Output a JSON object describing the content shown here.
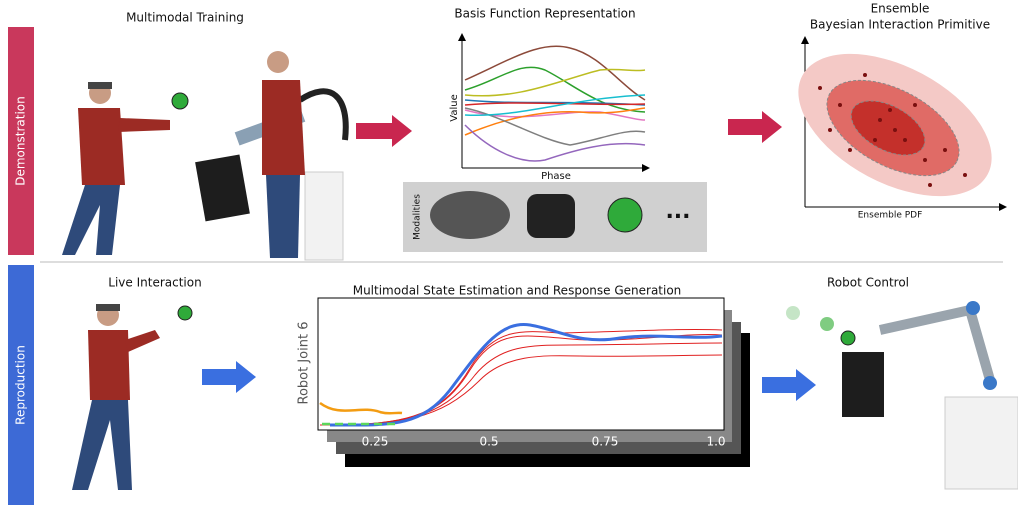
{
  "sections": {
    "demonstration": "Demonstration",
    "reproduction": "Reproduction"
  },
  "training": {
    "title": "Multimodal Training"
  },
  "basis": {
    "title": "Basis Function Representation",
    "y_label": "Value",
    "x_label": "Phase",
    "modalities": "Modalities",
    "ellipsis": "..."
  },
  "ensemble": {
    "title_line1": "Ensemble",
    "title_line2": "Bayesian Interaction Primitive",
    "x_label": "Ensemble PDF"
  },
  "live": {
    "title": "Live Interaction"
  },
  "estimation": {
    "title": "Multimodal State Estimation and Response Generation",
    "y_label": "Robot Joint 6",
    "ticks": [
      "0.25",
      "0.5",
      "0.75",
      "1.0"
    ]
  },
  "control": {
    "title": "Robot Control"
  }
}
